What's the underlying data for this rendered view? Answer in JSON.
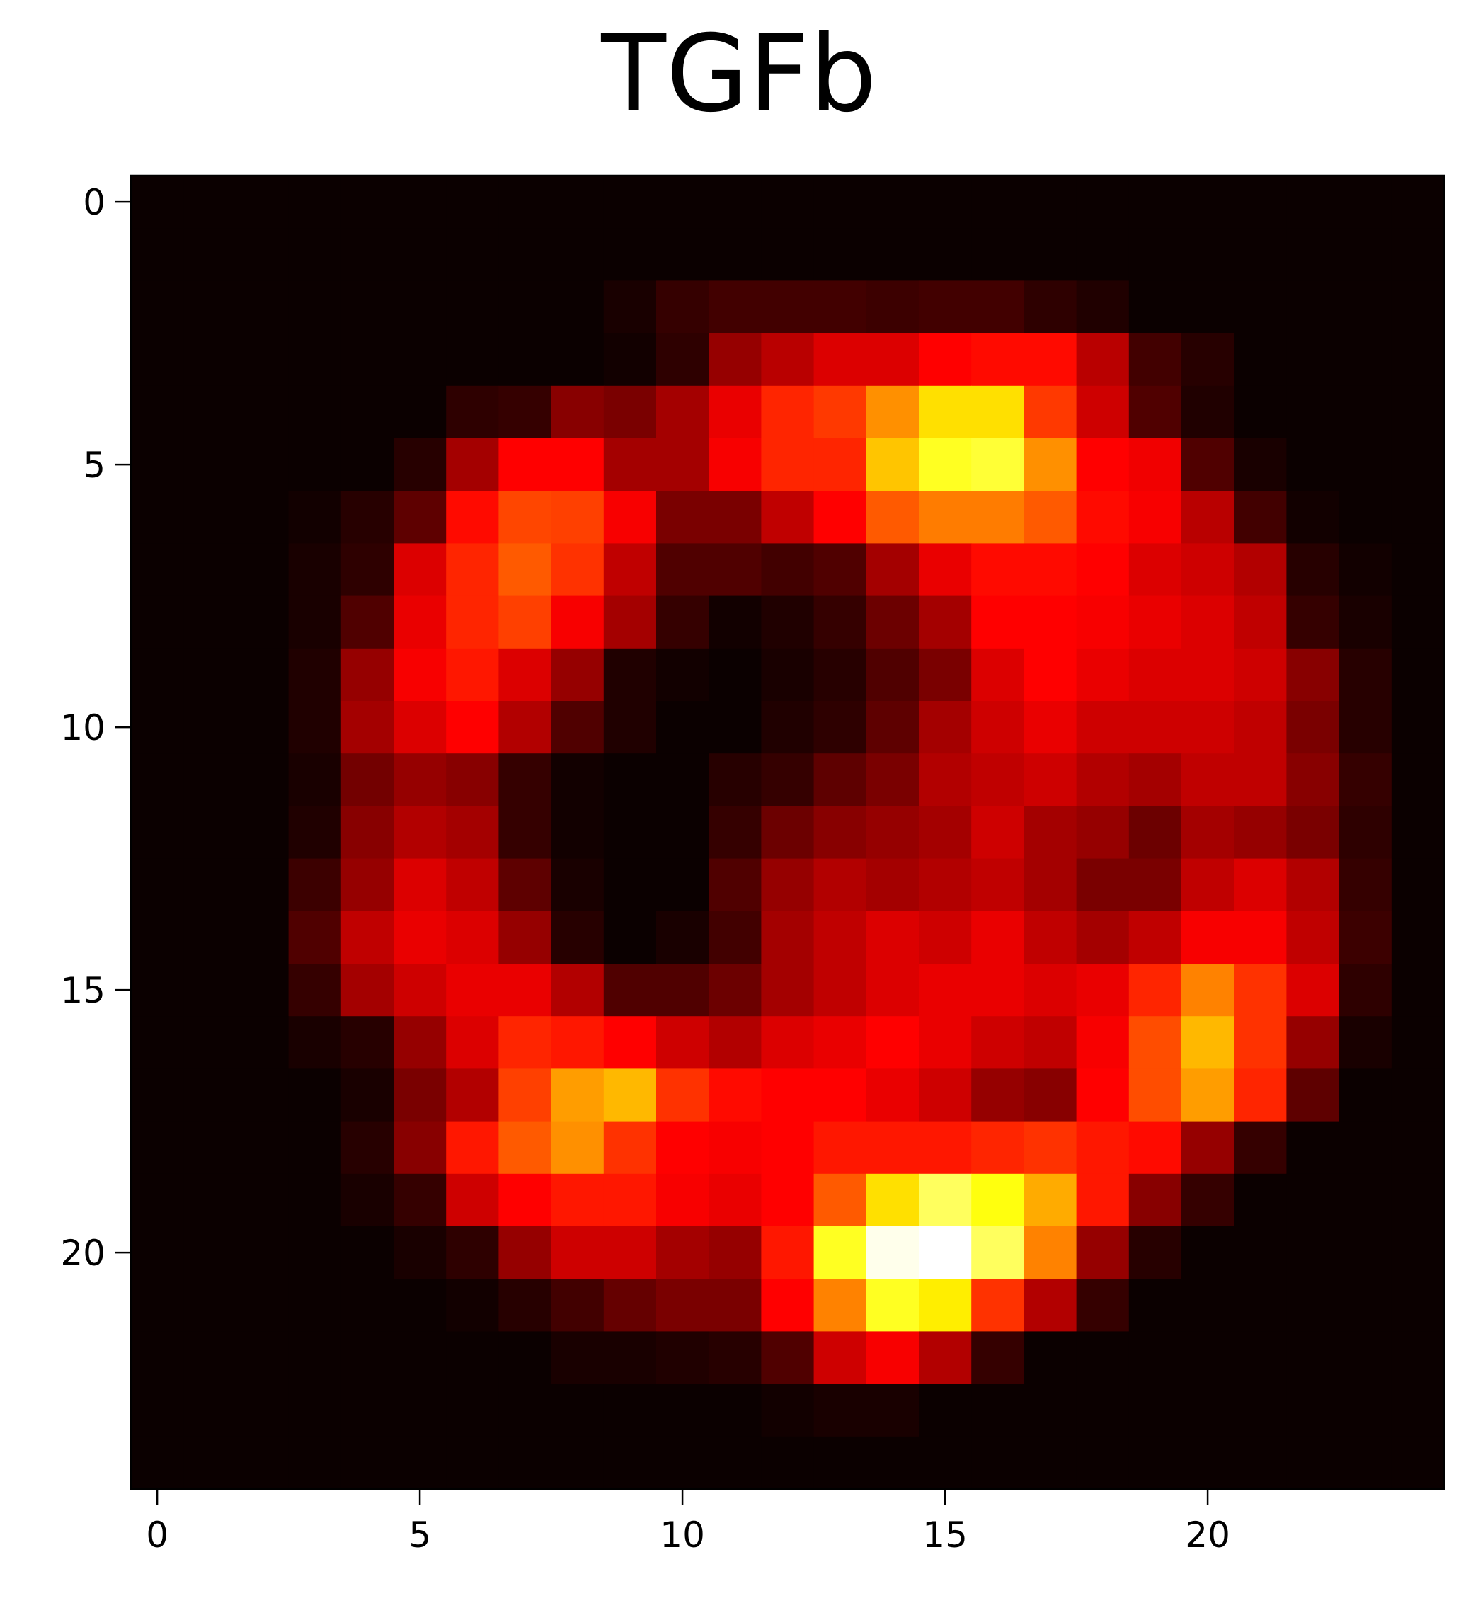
{
  "chart_data": {
    "type": "heatmap",
    "title": "TGFb",
    "xlabel": "",
    "ylabel": "",
    "colormap": "hot",
    "value_range": [
      0,
      1
    ],
    "x_ticks": [
      "0",
      "5",
      "10",
      "15",
      "20"
    ],
    "y_ticks": [
      "0",
      "5",
      "10",
      "15",
      "20"
    ],
    "xlim": [
      -0.5,
      24.5
    ],
    "ylim": [
      24.5,
      -0.5
    ],
    "grid": false,
    "rows": 25,
    "cols": 25,
    "values": [
      [
        0,
        0,
        0,
        0,
        0,
        0,
        0,
        0,
        0,
        0,
        0,
        0,
        0,
        0,
        0,
        0,
        0,
        0,
        0,
        0,
        0,
        0,
        0,
        0,
        0
      ],
      [
        0,
        0,
        0,
        0,
        0,
        0,
        0,
        0,
        0,
        0,
        0,
        0,
        0,
        0,
        0,
        0,
        0,
        0,
        0,
        0,
        0,
        0,
        0,
        0,
        0
      ],
      [
        0,
        0,
        0,
        0,
        0,
        0,
        0,
        0,
        0,
        0.02,
        0.06,
        0.08,
        0.08,
        0.08,
        0.07,
        0.08,
        0.08,
        0.05,
        0.03,
        0,
        0,
        0,
        0,
        0,
        0
      ],
      [
        0,
        0,
        0,
        0,
        0,
        0,
        0,
        0,
        0,
        0.01,
        0.05,
        0.2,
        0.25,
        0.3,
        0.3,
        0.35,
        0.38,
        0.38,
        0.25,
        0.08,
        0.04,
        0,
        0,
        0,
        0
      ],
      [
        0,
        0,
        0,
        0,
        0,
        0,
        0.05,
        0.06,
        0.18,
        0.16,
        0.22,
        0.32,
        0.42,
        0.45,
        0.58,
        0.7,
        0.7,
        0.45,
        0.28,
        0.1,
        0.03,
        0,
        0,
        0,
        0
      ],
      [
        0,
        0,
        0,
        0,
        0,
        0.04,
        0.22,
        0.36,
        0.36,
        0.22,
        0.22,
        0.34,
        0.42,
        0.42,
        0.66,
        0.78,
        0.8,
        0.58,
        0.36,
        0.33,
        0.1,
        0.02,
        0,
        0,
        0
      ],
      [
        0,
        0,
        0,
        0.01,
        0.04,
        0.12,
        0.38,
        0.47,
        0.46,
        0.34,
        0.16,
        0.16,
        0.26,
        0.36,
        0.5,
        0.55,
        0.55,
        0.5,
        0.38,
        0.34,
        0.25,
        0.08,
        0.01,
        0,
        0
      ],
      [
        0,
        0,
        0,
        0.02,
        0.05,
        0.3,
        0.42,
        0.5,
        0.44,
        0.26,
        0.1,
        0.1,
        0.08,
        0.1,
        0.22,
        0.32,
        0.38,
        0.38,
        0.36,
        0.3,
        0.28,
        0.24,
        0.04,
        0.01,
        0
      ],
      [
        0,
        0,
        0,
        0.02,
        0.1,
        0.32,
        0.42,
        0.46,
        0.34,
        0.22,
        0.06,
        0.01,
        0.03,
        0.06,
        0.14,
        0.22,
        0.36,
        0.36,
        0.34,
        0.32,
        0.3,
        0.26,
        0.06,
        0.02,
        0
      ],
      [
        0,
        0,
        0,
        0.03,
        0.2,
        0.34,
        0.4,
        0.3,
        0.2,
        0.03,
        0.01,
        0,
        0.02,
        0.04,
        0.1,
        0.16,
        0.3,
        0.36,
        0.32,
        0.3,
        0.3,
        0.28,
        0.18,
        0.04,
        0
      ],
      [
        0,
        0,
        0,
        0.03,
        0.22,
        0.3,
        0.36,
        0.24,
        0.1,
        0.03,
        0,
        0,
        0.03,
        0.05,
        0.12,
        0.22,
        0.28,
        0.32,
        0.28,
        0.28,
        0.28,
        0.26,
        0.16,
        0.04,
        0
      ],
      [
        0,
        0,
        0,
        0.02,
        0.15,
        0.2,
        0.18,
        0.06,
        0.01,
        0,
        0,
        0.04,
        0.06,
        0.12,
        0.16,
        0.24,
        0.26,
        0.28,
        0.24,
        0.22,
        0.26,
        0.26,
        0.18,
        0.06,
        0
      ],
      [
        0,
        0,
        0,
        0.03,
        0.18,
        0.24,
        0.22,
        0.06,
        0.01,
        0,
        0,
        0.06,
        0.14,
        0.18,
        0.2,
        0.22,
        0.28,
        0.22,
        0.2,
        0.14,
        0.22,
        0.2,
        0.16,
        0.05,
        0
      ],
      [
        0,
        0,
        0,
        0.07,
        0.2,
        0.3,
        0.26,
        0.12,
        0.02,
        0,
        0,
        0.1,
        0.2,
        0.24,
        0.22,
        0.24,
        0.26,
        0.22,
        0.16,
        0.16,
        0.26,
        0.3,
        0.24,
        0.06,
        0
      ],
      [
        0,
        0,
        0,
        0.1,
        0.26,
        0.32,
        0.3,
        0.2,
        0.04,
        0,
        0.02,
        0.08,
        0.22,
        0.26,
        0.3,
        0.28,
        0.32,
        0.26,
        0.22,
        0.26,
        0.34,
        0.34,
        0.26,
        0.07,
        0
      ],
      [
        0,
        0,
        0,
        0.06,
        0.22,
        0.28,
        0.32,
        0.32,
        0.24,
        0.1,
        0.1,
        0.14,
        0.22,
        0.26,
        0.3,
        0.32,
        0.32,
        0.3,
        0.32,
        0.42,
        0.56,
        0.44,
        0.3,
        0.05,
        0
      ],
      [
        0,
        0,
        0,
        0.02,
        0.04,
        0.2,
        0.3,
        0.42,
        0.4,
        0.36,
        0.28,
        0.24,
        0.3,
        0.32,
        0.36,
        0.32,
        0.28,
        0.26,
        0.34,
        0.48,
        0.64,
        0.44,
        0.2,
        0.02,
        0
      ],
      [
        0,
        0,
        0,
        0,
        0.02,
        0.16,
        0.24,
        0.46,
        0.6,
        0.64,
        0.44,
        0.38,
        0.36,
        0.36,
        0.32,
        0.28,
        0.2,
        0.18,
        0.36,
        0.48,
        0.6,
        0.42,
        0.12,
        0,
        0
      ],
      [
        0,
        0,
        0,
        0,
        0.04,
        0.18,
        0.4,
        0.5,
        0.58,
        0.44,
        0.36,
        0.34,
        0.36,
        0.4,
        0.4,
        0.4,
        0.42,
        0.44,
        0.4,
        0.38,
        0.2,
        0.06,
        0,
        0,
        0
      ],
      [
        0,
        0,
        0,
        0,
        0.02,
        0.06,
        0.28,
        0.36,
        0.4,
        0.4,
        0.34,
        0.32,
        0.36,
        0.5,
        0.7,
        0.84,
        0.76,
        0.62,
        0.4,
        0.18,
        0.06,
        0,
        0,
        0,
        0
      ],
      [
        0,
        0,
        0,
        0,
        0,
        0.02,
        0.05,
        0.2,
        0.28,
        0.28,
        0.22,
        0.2,
        0.4,
        0.78,
        0.98,
        1,
        0.84,
        0.56,
        0.2,
        0.04,
        0,
        0,
        0,
        0,
        0
      ],
      [
        0,
        0,
        0,
        0,
        0,
        0,
        0.01,
        0.04,
        0.08,
        0.13,
        0.16,
        0.16,
        0.36,
        0.56,
        0.78,
        0.72,
        0.44,
        0.24,
        0.06,
        0,
        0,
        0,
        0,
        0,
        0
      ],
      [
        0,
        0,
        0,
        0,
        0,
        0,
        0,
        0,
        0.02,
        0.02,
        0.03,
        0.04,
        0.1,
        0.28,
        0.34,
        0.24,
        0.06,
        0,
        0,
        0,
        0,
        0,
        0,
        0,
        0
      ],
      [
        0,
        0,
        0,
        0,
        0,
        0,
        0,
        0,
        0,
        0,
        0,
        0,
        0.01,
        0.02,
        0.02,
        0,
        0,
        0,
        0,
        0,
        0,
        0,
        0,
        0,
        0
      ],
      [
        0,
        0,
        0,
        0,
        0,
        0,
        0,
        0,
        0,
        0,
        0,
        0,
        0,
        0,
        0,
        0,
        0,
        0,
        0,
        0,
        0,
        0,
        0,
        0,
        0
      ]
    ]
  }
}
